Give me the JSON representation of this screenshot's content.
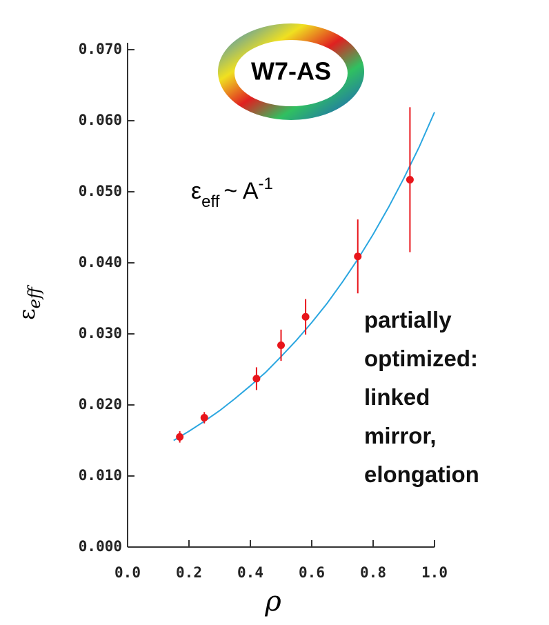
{
  "chart_data": {
    "type": "scatter",
    "title": "W7-AS",
    "x_label": "ρ",
    "y_label": {
      "base": "ε",
      "sub": "eff"
    },
    "annotation": {
      "base": "ε",
      "sub": "eff",
      "mid": "~ A",
      "sup": "-1"
    },
    "note_lines": [
      "partially",
      "optimized:",
      "linked",
      "mirror,",
      "elongation"
    ],
    "x": [
      0.17,
      0.25,
      0.42,
      0.5,
      0.58,
      0.75,
      0.92
    ],
    "values": [
      0.0155,
      0.0182,
      0.0237,
      0.0284,
      0.0324,
      0.0409,
      0.0517
    ],
    "errors": [
      0.0008,
      0.0008,
      0.0016,
      0.0022,
      0.0025,
      0.0052,
      0.0102
    ],
    "color": "#e8151b",
    "fit": {
      "x": [
        0.15,
        0.2,
        0.25,
        0.3,
        0.35,
        0.4,
        0.45,
        0.5,
        0.55,
        0.6,
        0.65,
        0.7,
        0.75,
        0.8,
        0.85,
        0.9,
        0.95,
        1.0
      ],
      "values": [
        0.015,
        0.0163,
        0.0177,
        0.0192,
        0.0209,
        0.0227,
        0.0246,
        0.0268,
        0.0291,
        0.0316,
        0.0343,
        0.0373,
        0.0405,
        0.044,
        0.0478,
        0.0519,
        0.0563,
        0.0612
      ],
      "color": "#2aa6e0"
    },
    "xlim": [
      0,
      1
    ],
    "ylim": [
      0,
      0.07
    ],
    "xticks": [
      {
        "value": 0,
        "label": "0.0"
      },
      0.2,
      0.4,
      0.6,
      0.8,
      {
        "value": 1,
        "label": "1.0"
      }
    ],
    "yticks": [
      {
        "value": 0,
        "label": "0.000"
      },
      {
        "value": 0.01,
        "label": "0.010"
      },
      {
        "value": 0.02,
        "label": "0.020"
      },
      {
        "value": 0.03,
        "label": "0.030"
      },
      {
        "value": 0.04,
        "label": "0.040"
      },
      {
        "value": 0.05,
        "label": "0.050"
      },
      {
        "value": 0.06,
        "label": "0.060"
      },
      {
        "value": 0.07,
        "label": "0.070"
      }
    ]
  }
}
